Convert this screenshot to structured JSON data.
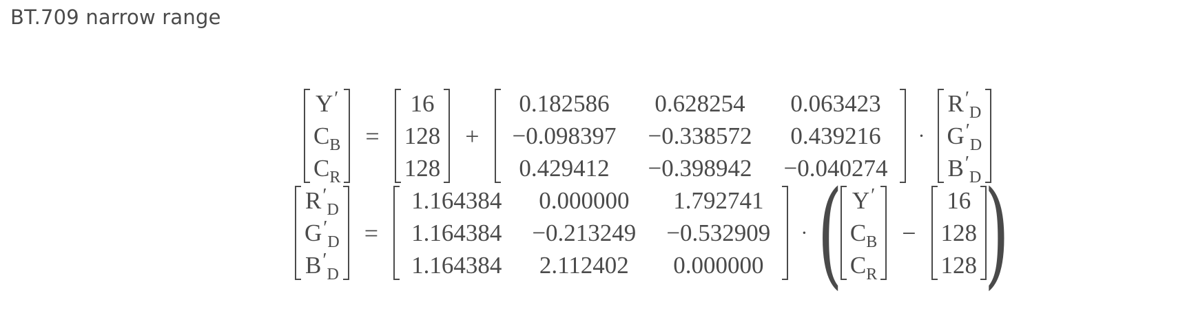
{
  "heading": "BT.709 narrow range",
  "forward": {
    "lhs": [
      {
        "base": "Y",
        "prime": "′",
        "sub": ""
      },
      {
        "base": "C",
        "prime": "",
        "sub": "B"
      },
      {
        "base": "C",
        "prime": "",
        "sub": "R"
      }
    ],
    "equals": "=",
    "offset": [
      "16",
      "128",
      "128"
    ],
    "plus": "+",
    "matrix": [
      [
        "0.182586",
        "0.628254",
        "0.063423"
      ],
      [
        "−0.098397",
        "−0.338572",
        "0.439216"
      ],
      [
        "0.429412",
        "−0.398942",
        "−0.040274"
      ]
    ],
    "dot": "·",
    "rhs": [
      {
        "base": "R",
        "prime": "′",
        "sub": "D"
      },
      {
        "base": "G",
        "prime": "′",
        "sub": "D"
      },
      {
        "base": "B",
        "prime": "′",
        "sub": "D"
      }
    ]
  },
  "inverse": {
    "lhs": [
      {
        "base": "R",
        "prime": "′",
        "sub": "D"
      },
      {
        "base": "G",
        "prime": "′",
        "sub": "D"
      },
      {
        "base": "B",
        "prime": "′",
        "sub": "D"
      }
    ],
    "equals": "=",
    "matrix": [
      [
        "1.164384",
        "0.000000",
        "1.792741"
      ],
      [
        "1.164384",
        "−0.213249",
        "−0.532909"
      ],
      [
        "1.164384",
        "2.112402",
        "0.000000"
      ]
    ],
    "dot": "·",
    "open_paren": "(",
    "vector": [
      {
        "base": "Y",
        "prime": "′",
        "sub": ""
      },
      {
        "base": "C",
        "prime": "",
        "sub": "B"
      },
      {
        "base": "C",
        "prime": "",
        "sub": "R"
      }
    ],
    "minus": "−",
    "offset": [
      "16",
      "128",
      "128"
    ],
    "close_paren": ")"
  }
}
